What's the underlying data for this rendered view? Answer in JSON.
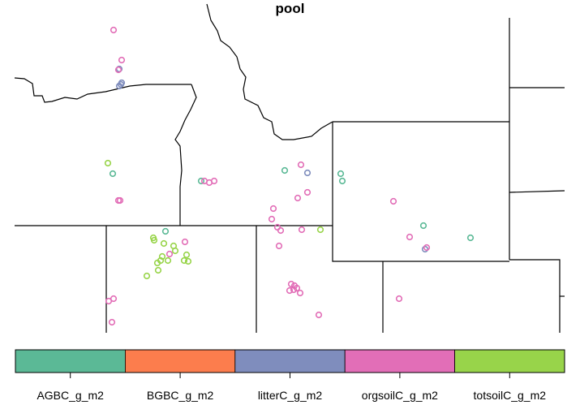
{
  "title": "pool",
  "legend": {
    "categories": [
      {
        "label": "AGBC_g_m2",
        "color": "#5bb996"
      },
      {
        "label": "BGBC_g_m2",
        "color": "#fc7d4d"
      },
      {
        "label": "litterC_g_m2",
        "color": "#7f8dbd"
      },
      {
        "label": "orgsoilC_g_m2",
        "color": "#e26eb7"
      },
      {
        "label": "totsoilC_g_m2",
        "color": "#98d44a"
      }
    ]
  }
}
